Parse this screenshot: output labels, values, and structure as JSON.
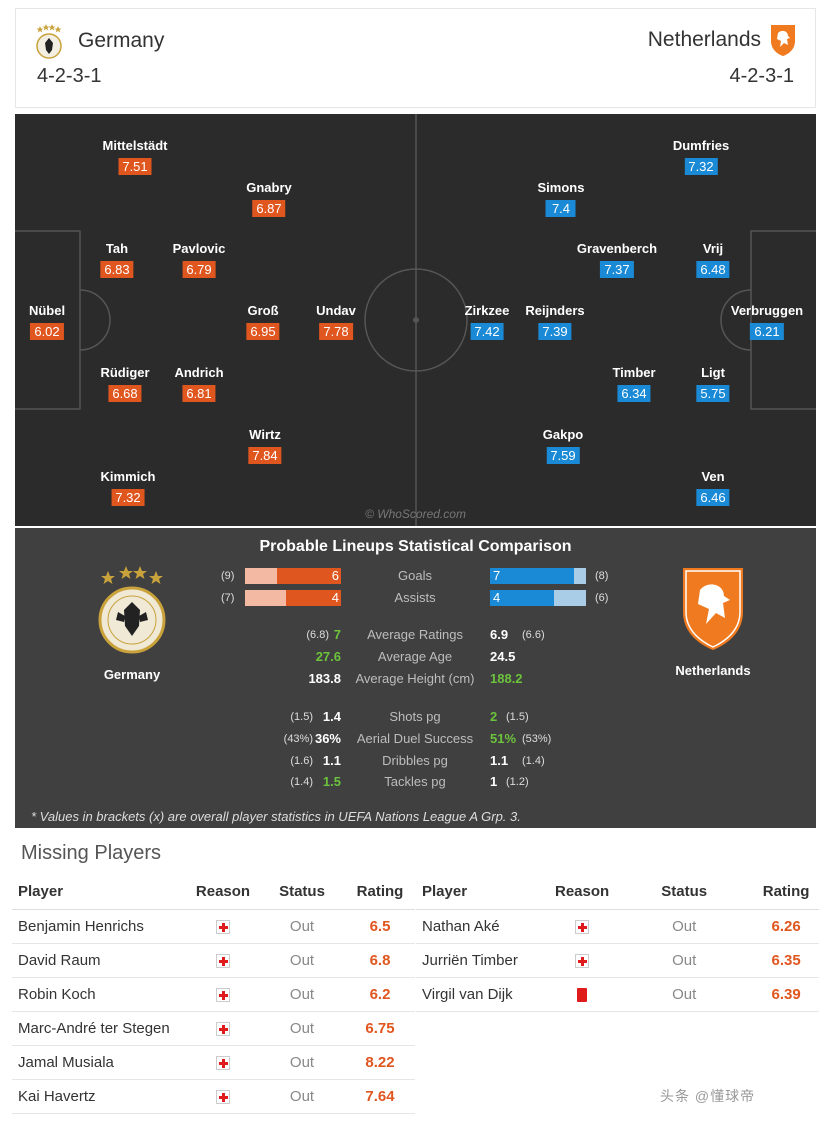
{
  "header": {
    "home": {
      "name": "Germany",
      "formation": "4-2-3-1"
    },
    "away": {
      "name": "Netherlands",
      "formation": "4-2-3-1"
    }
  },
  "pitch": {
    "watermark": "© WhoScored.com",
    "home_players": [
      {
        "name": "Mittelstädt",
        "rating": "7.51"
      },
      {
        "name": "Gnabry",
        "rating": "6.87"
      },
      {
        "name": "Tah",
        "rating": "6.83"
      },
      {
        "name": "Pavlovic",
        "rating": "6.79"
      },
      {
        "name": "Nübel",
        "rating": "6.02"
      },
      {
        "name": "Groß",
        "rating": "6.95"
      },
      {
        "name": "Undav",
        "rating": "7.78"
      },
      {
        "name": "Rüdiger",
        "rating": "6.68"
      },
      {
        "name": "Andrich",
        "rating": "6.81"
      },
      {
        "name": "Wirtz",
        "rating": "7.84"
      },
      {
        "name": "Kimmich",
        "rating": "7.32"
      }
    ],
    "away_players": [
      {
        "name": "Dumfries",
        "rating": "7.32"
      },
      {
        "name": "Simons",
        "rating": "7.4"
      },
      {
        "name": "Gravenberch",
        "rating": "7.37"
      },
      {
        "name": "Vrij",
        "rating": "6.48"
      },
      {
        "name": "Zirkzee",
        "rating": "7.42"
      },
      {
        "name": "Reijnders",
        "rating": "7.39"
      },
      {
        "name": "Verbruggen",
        "rating": "6.21"
      },
      {
        "name": "Timber",
        "rating": "6.34"
      },
      {
        "name": "Ligt",
        "rating": "5.75"
      },
      {
        "name": "Gakpo",
        "rating": "7.59"
      },
      {
        "name": "Ven",
        "rating": "6.46"
      }
    ]
  },
  "stats": {
    "title": "Probable Lineups Statistical Comparison",
    "home_team": "Germany",
    "away_team": "Netherlands",
    "bars": [
      {
        "label": "Goals",
        "home": "6",
        "home_overall": "(9)",
        "away": "7",
        "away_overall": "(8)",
        "home_fraction": 0.67,
        "away_fraction": 0.875
      },
      {
        "label": "Assists",
        "home": "4",
        "home_overall": "(7)",
        "away": "4",
        "away_overall": "(6)",
        "home_fraction": 0.57,
        "away_fraction": 0.67
      }
    ],
    "rows": [
      {
        "label": "Average Ratings",
        "home": "7",
        "home_overall": "(6.8)",
        "away": "6.9",
        "away_overall": "(6.6)",
        "better": "home"
      },
      {
        "label": "Average Age",
        "home": "27.6",
        "home_overall": "",
        "away": "24.5",
        "away_overall": "",
        "better": "home"
      },
      {
        "label": "Average Height (cm)",
        "home": "183.8",
        "home_overall": "",
        "away": "188.2",
        "away_overall": "",
        "better": "away"
      },
      {
        "label": "Shots pg",
        "home": "1.4",
        "home_overall": "(1.5)",
        "away": "2",
        "away_overall": "(1.5)",
        "better": "away"
      },
      {
        "label": "Aerial Duel Success",
        "home": "36%",
        "home_overall": "(43%)",
        "away": "51%",
        "away_overall": "(53%)",
        "better": "away"
      },
      {
        "label": "Dribbles pg",
        "home": "1.1",
        "home_overall": "(1.6)",
        "away": "1.1",
        "away_overall": "(1.4)",
        "better": ""
      },
      {
        "label": "Tackles pg",
        "home": "1.5",
        "home_overall": "(1.4)",
        "away": "1",
        "away_overall": "(1.2)",
        "better": "home"
      }
    ],
    "note": "* Values in brackets (x) are overall player statistics in UEFA Nations League A Grp. 3."
  },
  "missing": {
    "title": "Missing Players",
    "headers": {
      "player": "Player",
      "reason": "Reason",
      "status": "Status",
      "rating": "Rating"
    },
    "home": [
      {
        "player": "Benjamin Henrichs",
        "reason": "injury-icon",
        "status": "Out",
        "rating": "6.5"
      },
      {
        "player": "David Raum",
        "reason": "injury-icon",
        "status": "Out",
        "rating": "6.8"
      },
      {
        "player": "Robin Koch",
        "reason": "injury-icon",
        "status": "Out",
        "rating": "6.2"
      },
      {
        "player": "Marc-André ter Stegen",
        "reason": "injury-icon",
        "status": "Out",
        "rating": "6.75"
      },
      {
        "player": "Jamal Musiala",
        "reason": "injury-icon",
        "status": "Out",
        "rating": "8.22"
      },
      {
        "player": "Kai Havertz",
        "reason": "injury-icon",
        "status": "Out",
        "rating": "7.64"
      }
    ],
    "away": [
      {
        "player": "Nathan Aké",
        "reason": "injury-icon",
        "status": "Out",
        "rating": "6.26"
      },
      {
        "player": "Jurriën Timber",
        "reason": "injury-icon",
        "status": "Out",
        "rating": "6.35"
      },
      {
        "player": "Virgil van Dijk",
        "reason": "red-card-icon",
        "status": "Out",
        "rating": "6.39"
      }
    ]
  },
  "colors": {
    "home": "#e0561f",
    "away": "#1a8ad6",
    "better": "#6cc33c"
  },
  "corner_watermark": "头条 @懂球帝"
}
